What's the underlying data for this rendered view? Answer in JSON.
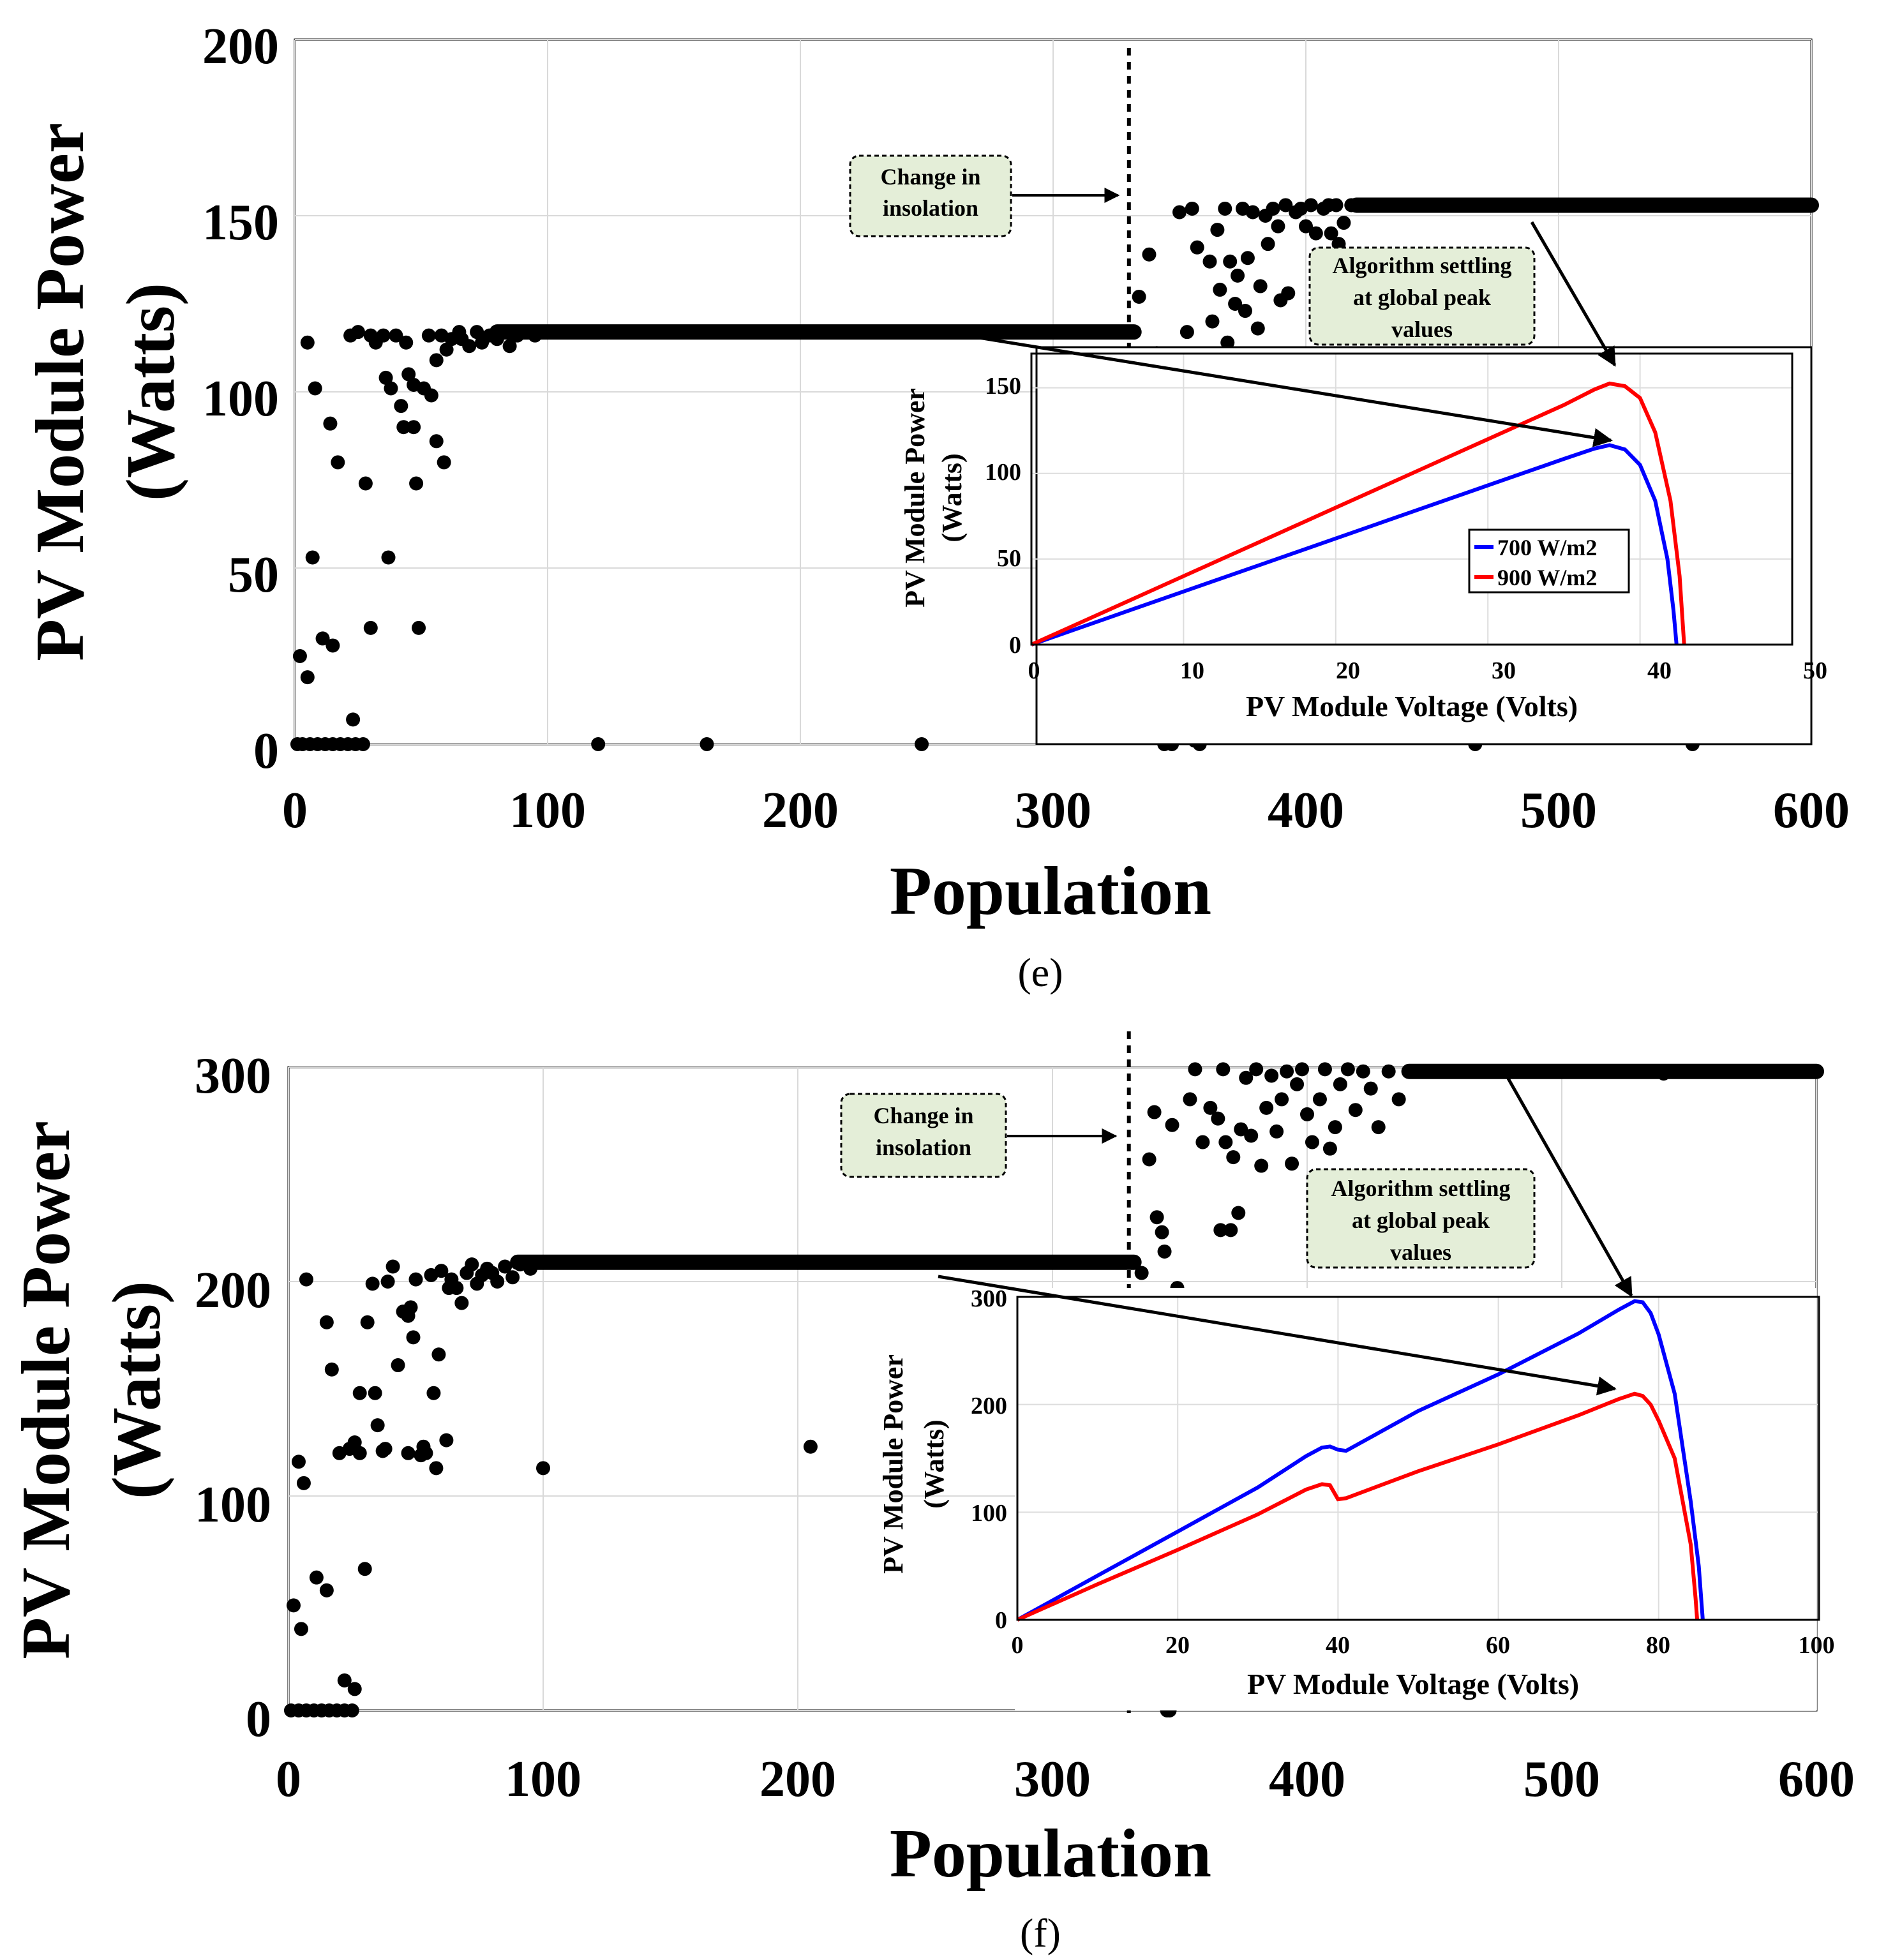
{
  "colors": {
    "blue": "#0000ff",
    "red": "#ff0000",
    "note_fill": "#e4eed8",
    "dots": "#000000"
  },
  "chart_data": [
    {
      "panel": "e",
      "type": "scatter",
      "caption": "(e)",
      "xlabel": "Population",
      "ylabel_line1": "PV Module Power",
      "ylabel_line2": "(Watts)",
      "xlim": [
        0,
        600
      ],
      "ylim": [
        0,
        200
      ],
      "xticks": [
        "0",
        "100",
        "200",
        "300",
        "400",
        "500",
        "600"
      ],
      "yticks": [
        "0",
        "50",
        "100",
        "150",
        "200"
      ],
      "grid": true,
      "change_marker_x": 330,
      "annotations": {
        "change_line1": "Change in",
        "change_line2": "insolation",
        "settle_line1": "Algorithm settling",
        "settle_line2": "at global peak",
        "settle_line3": "values"
      },
      "plateaus": [
        {
          "x_start": 80,
          "x_end": 332,
          "y": 117
        },
        {
          "x_start": 420,
          "x_end": 600,
          "y": 153
        }
      ],
      "points": [
        [
          1,
          0
        ],
        [
          3,
          0
        ],
        [
          6,
          0
        ],
        [
          9,
          0
        ],
        [
          12,
          0
        ],
        [
          15,
          0
        ],
        [
          18,
          0
        ],
        [
          21,
          0
        ],
        [
          24,
          0
        ],
        [
          27,
          0
        ],
        [
          2,
          25
        ],
        [
          5,
          19
        ],
        [
          7,
          53
        ],
        [
          11,
          30
        ],
        [
          15,
          28
        ],
        [
          23,
          7
        ],
        [
          5,
          114
        ],
        [
          8,
          101
        ],
        [
          14,
          91
        ],
        [
          17,
          80
        ],
        [
          28,
          74
        ],
        [
          30,
          33
        ],
        [
          37,
          53
        ],
        [
          49,
          33
        ],
        [
          48,
          74
        ],
        [
          56,
          86
        ],
        [
          59,
          80
        ],
        [
          22,
          116
        ],
        [
          25,
          117
        ],
        [
          30,
          116
        ],
        [
          32,
          114
        ],
        [
          35,
          116
        ],
        [
          36,
          104
        ],
        [
          38,
          101
        ],
        [
          40,
          116
        ],
        [
          42,
          96
        ],
        [
          43,
          90
        ],
        [
          44,
          114
        ],
        [
          45,
          105
        ],
        [
          47,
          90
        ],
        [
          47,
          102
        ],
        [
          51,
          101
        ],
        [
          53,
          116
        ],
        [
          54,
          99
        ],
        [
          56,
          109
        ],
        [
          58,
          116
        ],
        [
          60,
          112
        ],
        [
          62,
          115
        ],
        [
          65,
          117
        ],
        [
          66,
          115
        ],
        [
          69,
          113
        ],
        [
          72,
          117
        ],
        [
          74,
          114
        ],
        [
          77,
          116
        ],
        [
          80,
          115
        ],
        [
          82,
          117
        ],
        [
          85,
          113
        ],
        [
          88,
          116
        ],
        [
          90,
          117
        ],
        [
          95,
          116
        ],
        [
          120,
          0
        ],
        [
          163,
          0
        ],
        [
          248,
          0
        ],
        [
          334,
          127
        ],
        [
          336,
          104
        ],
        [
          338,
          139
        ],
        [
          341,
          111
        ],
        [
          342,
          109
        ],
        [
          344,
          0
        ],
        [
          345,
          15
        ],
        [
          347,
          0
        ],
        [
          350,
          151
        ],
        [
          352,
          20
        ],
        [
          353,
          117
        ],
        [
          355,
          152
        ],
        [
          356,
          1
        ],
        [
          357,
          141
        ],
        [
          358,
          0
        ],
        [
          360,
          8
        ],
        [
          362,
          137
        ],
        [
          363,
          120
        ],
        [
          365,
          146
        ],
        [
          366,
          129
        ],
        [
          368,
          152
        ],
        [
          369,
          114
        ],
        [
          370,
          137
        ],
        [
          372,
          125
        ],
        [
          373,
          133
        ],
        [
          375,
          152
        ],
        [
          376,
          123
        ],
        [
          377,
          138
        ],
        [
          379,
          151
        ],
        [
          381,
          118
        ],
        [
          382,
          130
        ],
        [
          384,
          150
        ],
        [
          385,
          142
        ],
        [
          387,
          152
        ],
        [
          389,
          147
        ],
        [
          390,
          126
        ],
        [
          392,
          153
        ],
        [
          393,
          128
        ],
        [
          396,
          151
        ],
        [
          398,
          152
        ],
        [
          400,
          147
        ],
        [
          402,
          153
        ],
        [
          404,
          145
        ],
        [
          405,
          139
        ],
        [
          407,
          152
        ],
        [
          409,
          153
        ],
        [
          410,
          145
        ],
        [
          412,
          153
        ],
        [
          413,
          142
        ],
        [
          415,
          148
        ],
        [
          418,
          153
        ],
        [
          467,
          0
        ],
        [
          553,
          0
        ]
      ]
    },
    {
      "type": "line",
      "xlabel": "PV Module Voltage (Volts)",
      "ylabel_line1": "PV Module Power",
      "ylabel_line2": "(Watts)",
      "xlim": [
        0,
        50
      ],
      "ylim": [
        0,
        170
      ],
      "xticks": [
        "0",
        "10",
        "20",
        "30",
        "40",
        "50"
      ],
      "yticks": [
        "0",
        "50",
        "100",
        "150"
      ],
      "legend": "inside-right",
      "series": [
        {
          "name": "700 W/m2",
          "color": "#0000ff",
          "points": [
            [
              0,
              0
            ],
            [
              5,
              15.5
            ],
            [
              10,
              31
            ],
            [
              15,
              46.5
            ],
            [
              20,
              62
            ],
            [
              25,
              77.5
            ],
            [
              30,
              93
            ],
            [
              35,
              108.5
            ],
            [
              37,
              114.5
            ],
            [
              38,
              116.5
            ],
            [
              39,
              114
            ],
            [
              40,
              105
            ],
            [
              41,
              84
            ],
            [
              41.8,
              50
            ],
            [
              42.2,
              20
            ],
            [
              42.4,
              0
            ]
          ]
        },
        {
          "name": "900 W/m2",
          "color": "#ff0000",
          "points": [
            [
              0,
              0
            ],
            [
              5,
              20
            ],
            [
              10,
              40
            ],
            [
              15,
              60
            ],
            [
              20,
              80
            ],
            [
              25,
              100
            ],
            [
              30,
              120
            ],
            [
              35,
              140
            ],
            [
              37,
              149
            ],
            [
              38,
              152.5
            ],
            [
              39,
              151
            ],
            [
              40,
              144
            ],
            [
              41,
              124
            ],
            [
              42,
              84
            ],
            [
              42.6,
              40
            ],
            [
              42.9,
              0
            ]
          ]
        }
      ]
    },
    {
      "panel": "f",
      "type": "scatter",
      "caption": "(f)",
      "xlabel": "Population",
      "ylabel_line1": "PV Module Power",
      "ylabel_line2": "(Watts)",
      "xlim": [
        0,
        600
      ],
      "ylim": [
        0,
        300
      ],
      "xticks": [
        "0",
        "100",
        "200",
        "300",
        "400",
        "500",
        "600"
      ],
      "yticks": [
        "0",
        "100",
        "200",
        "300"
      ],
      "grid": true,
      "change_marker_x": 330,
      "annotations": {
        "change_line1": "Change in",
        "change_line2": "insolation",
        "settle_line1": "Algorithm settling",
        "settle_line2": "at global peak",
        "settle_line3": "values"
      },
      "plateaus": [
        {
          "x_start": 90,
          "x_end": 332,
          "y": 209
        },
        {
          "x_start": 440,
          "x_end": 600,
          "y": 298
        }
      ],
      "points": [
        [
          1,
          0
        ],
        [
          4,
          0
        ],
        [
          7,
          0
        ],
        [
          10,
          0
        ],
        [
          13,
          0
        ],
        [
          16,
          0
        ],
        [
          19,
          0
        ],
        [
          22,
          0
        ],
        [
          25,
          0
        ],
        [
          2,
          49
        ],
        [
          5,
          38
        ],
        [
          11,
          62
        ],
        [
          15,
          56
        ],
        [
          22,
          14
        ],
        [
          26,
          10
        ],
        [
          30,
          66
        ],
        [
          4,
          116
        ],
        [
          6,
          106
        ],
        [
          7,
          201
        ],
        [
          15,
          181
        ],
        [
          17,
          159
        ],
        [
          20,
          120
        ],
        [
          24,
          122
        ],
        [
          26,
          125
        ],
        [
          28,
          148
        ],
        [
          28,
          120
        ],
        [
          31,
          181
        ],
        [
          33,
          199
        ],
        [
          34,
          148
        ],
        [
          35,
          133
        ],
        [
          37,
          121
        ],
        [
          38,
          122
        ],
        [
          39,
          200
        ],
        [
          41,
          207
        ],
        [
          43,
          161
        ],
        [
          45,
          186
        ],
        [
          47,
          120
        ],
        [
          47,
          184
        ],
        [
          48,
          188
        ],
        [
          49,
          174
        ],
        [
          50,
          201
        ],
        [
          52,
          119
        ],
        [
          53,
          123
        ],
        [
          54,
          120
        ],
        [
          56,
          203
        ],
        [
          57,
          148
        ],
        [
          58,
          113
        ],
        [
          59,
          166
        ],
        [
          60,
          205
        ],
        [
          62,
          126
        ],
        [
          63,
          197
        ],
        [
          64,
          201
        ],
        [
          66,
          197
        ],
        [
          68,
          190
        ],
        [
          70,
          204
        ],
        [
          72,
          208
        ],
        [
          74,
          199
        ],
        [
          76,
          203
        ],
        [
          78,
          206
        ],
        [
          80,
          204
        ],
        [
          82,
          200
        ],
        [
          85,
          207
        ],
        [
          88,
          202
        ],
        [
          91,
          208
        ],
        [
          95,
          206
        ],
        [
          100,
          113
        ],
        [
          205,
          123
        ],
        [
          335,
          204
        ],
        [
          338,
          257
        ],
        [
          340,
          279
        ],
        [
          341,
          230
        ],
        [
          343,
          223
        ],
        [
          344,
          214
        ],
        [
          345,
          0
        ],
        [
          346,
          0
        ],
        [
          347,
          273
        ],
        [
          349,
          197
        ],
        [
          352,
          8
        ],
        [
          354,
          285
        ],
        [
          356,
          299
        ],
        [
          359,
          265
        ],
        [
          362,
          281
        ],
        [
          365,
          276
        ],
        [
          366,
          224
        ],
        [
          367,
          299
        ],
        [
          368,
          265
        ],
        [
          370,
          224
        ],
        [
          371,
          258
        ],
        [
          373,
          232
        ],
        [
          374,
          271
        ],
        [
          376,
          295
        ],
        [
          378,
          268
        ],
        [
          380,
          299
        ],
        [
          382,
          254
        ],
        [
          384,
          281
        ],
        [
          386,
          296
        ],
        [
          388,
          270
        ],
        [
          390,
          285
        ],
        [
          392,
          298
        ],
        [
          394,
          255
        ],
        [
          396,
          292
        ],
        [
          398,
          299
        ],
        [
          400,
          278
        ],
        [
          402,
          265
        ],
        [
          405,
          285
        ],
        [
          407,
          299
        ],
        [
          409,
          262
        ],
        [
          411,
          272
        ],
        [
          413,
          292
        ],
        [
          416,
          299
        ],
        [
          419,
          280
        ],
        [
          422,
          298
        ],
        [
          425,
          290
        ],
        [
          428,
          272
        ],
        [
          432,
          298
        ],
        [
          436,
          285
        ],
        [
          540,
          297
        ]
      ]
    },
    {
      "type": "line",
      "xlabel": "PV Module Voltage (Volts)",
      "ylabel_line1": "PV Module Power",
      "ylabel_line2": "(Watts)",
      "xlim": [
        0,
        100
      ],
      "ylim": [
        0,
        300
      ],
      "xticks": [
        "0",
        "20",
        "40",
        "60",
        "80",
        "100"
      ],
      "yticks": [
        "0",
        "100",
        "200",
        "300"
      ],
      "series": [
        {
          "color": "#0000ff",
          "points": [
            [
              0,
              0
            ],
            [
              10,
              41
            ],
            [
              20,
              82
            ],
            [
              30,
              123
            ],
            [
              36,
              152
            ],
            [
              38,
              160
            ],
            [
              39,
              161
            ],
            [
              40,
              158
            ],
            [
              41,
              157
            ],
            [
              50,
              194
            ],
            [
              60,
              228
            ],
            [
              70,
              266
            ],
            [
              75,
              288
            ],
            [
              77,
              296
            ],
            [
              78,
              295
            ],
            [
              79,
              285
            ],
            [
              80,
              265
            ],
            [
              82,
              210
            ],
            [
              84,
              110
            ],
            [
              85,
              50
            ],
            [
              85.5,
              0
            ]
          ]
        },
        {
          "color": "#ff0000",
          "points": [
            [
              0,
              0
            ],
            [
              10,
              33
            ],
            [
              20,
              65
            ],
            [
              30,
              98
            ],
            [
              36,
              121
            ],
            [
              38,
              126
            ],
            [
              39,
              125
            ],
            [
              40,
              112
            ],
            [
              41,
              113
            ],
            [
              50,
              138
            ],
            [
              60,
              163
            ],
            [
              70,
              190
            ],
            [
              75,
              205
            ],
            [
              77,
              210
            ],
            [
              78,
              208
            ],
            [
              79,
              200
            ],
            [
              80,
              185
            ],
            [
              82,
              150
            ],
            [
              84,
              70
            ],
            [
              84.6,
              20
            ],
            [
              84.8,
              0
            ]
          ]
        }
      ]
    }
  ]
}
